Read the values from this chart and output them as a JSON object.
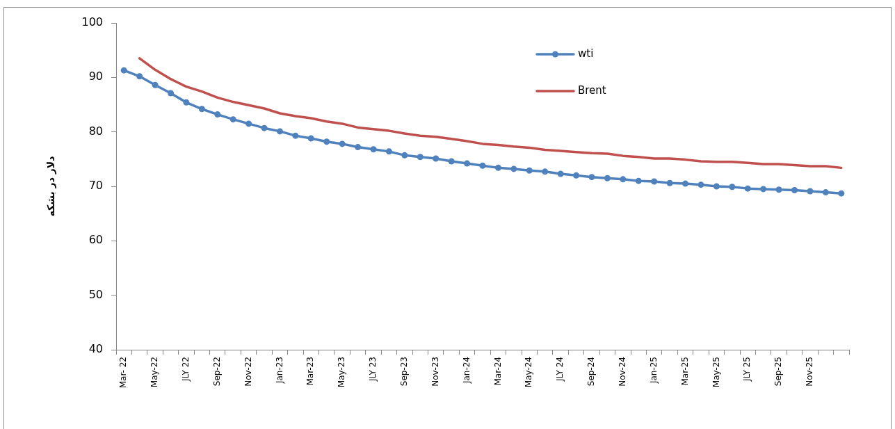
{
  "chart_data": {
    "type": "line",
    "ylabel": "دلار در بشکه",
    "categories": [
      "Mar- 22",
      null,
      "May-22",
      null,
      "JLY 22",
      null,
      "Sep-22",
      null,
      "Nov-22",
      null,
      "Jan-23",
      null,
      "Mar-23",
      null,
      "May-23",
      null,
      "JLY 23",
      null,
      "Sep-23",
      null,
      "Nov-23",
      null,
      "Jan-24",
      null,
      "Mar-24",
      null,
      "May-24",
      null,
      "JLY 24",
      null,
      "Sep-24",
      null,
      "Nov-24",
      null,
      "Jan-25",
      null,
      "Mar-25",
      null,
      "May-25",
      null,
      "JLY 25",
      null,
      "Sep-25",
      null,
      "Nov-25",
      null,
      null
    ],
    "series": [
      {
        "name": "wti",
        "color": "#4f81bd",
        "marker": "circle",
        "values": [
          91.3,
          90.2,
          88.6,
          87.1,
          85.4,
          84.2,
          83.2,
          82.3,
          81.5,
          80.7,
          80.1,
          79.3,
          78.8,
          78.2,
          77.8,
          77.2,
          76.8,
          76.4,
          75.7,
          75.4,
          75.1,
          74.6,
          74.2,
          73.8,
          73.4,
          73.2,
          72.9,
          72.7,
          72.3,
          72.0,
          71.7,
          71.5,
          71.3,
          71.0,
          70.9,
          70.6,
          70.5,
          70.3,
          70.0,
          69.9,
          69.6,
          69.5,
          69.4,
          69.3,
          69.1,
          68.9,
          68.7
        ]
      },
      {
        "name": "Brent",
        "color": "#c0504d",
        "marker": "none",
        "values": [
          null,
          93.5,
          91.4,
          89.7,
          88.3,
          87.4,
          86.3,
          85.5,
          84.9,
          84.3,
          83.4,
          82.9,
          82.5,
          81.9,
          81.5,
          80.8,
          80.5,
          80.2,
          79.7,
          79.3,
          79.1,
          78.7,
          78.3,
          77.8,
          77.6,
          77.3,
          77.1,
          76.7,
          76.5,
          76.3,
          76.1,
          76.0,
          75.6,
          75.4,
          75.1,
          75.1,
          74.9,
          74.6,
          74.5,
          74.5,
          74.3,
          74.1,
          74.1,
          73.9,
          73.7,
          73.7,
          73.4
        ]
      }
    ],
    "ylim": [
      40,
      100
    ],
    "yticks": [
      40,
      50,
      60,
      70,
      80,
      90,
      100
    ],
    "legend": "top right"
  }
}
